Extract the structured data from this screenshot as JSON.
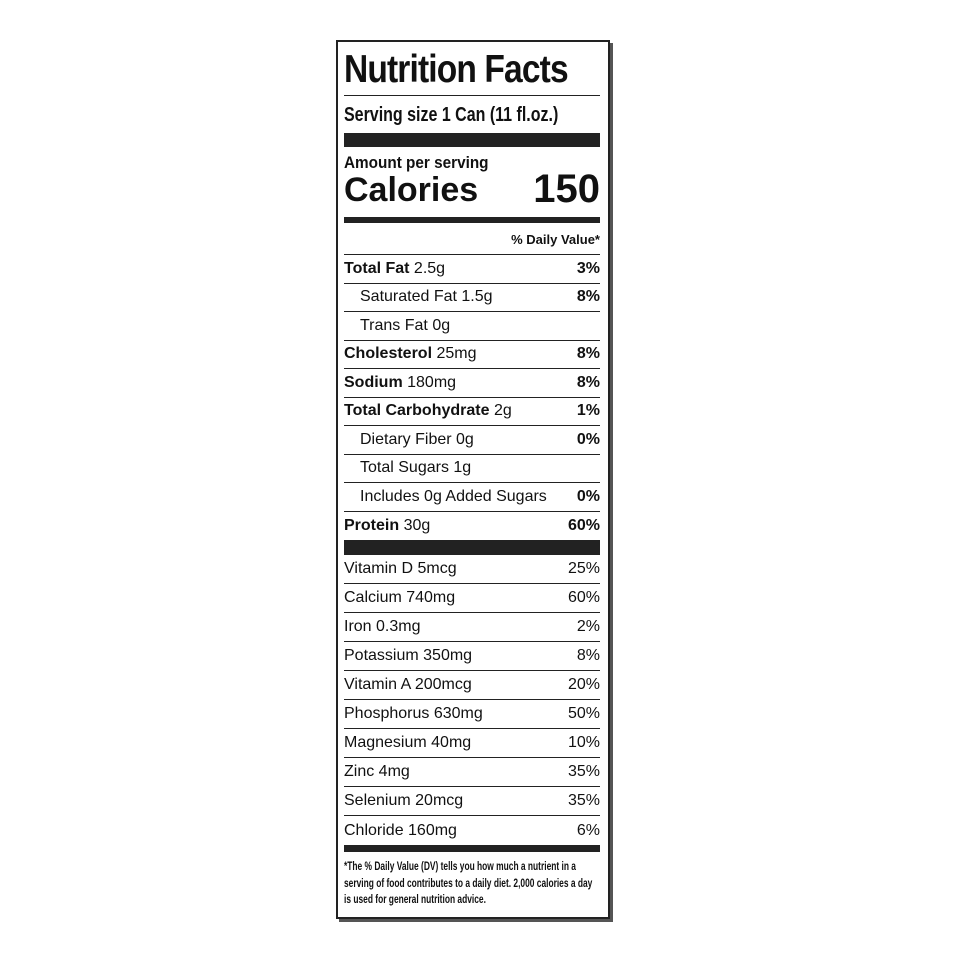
{
  "title": "Nutrition Facts",
  "serving_size": "Serving size  1 Can (11 fl.oz.)",
  "amount_per_serving": "Amount per serving",
  "calories_label": "Calories",
  "calories_value": "150",
  "daily_value_header": "% Daily Value*",
  "nutrients": [
    {
      "name": "Total Fat",
      "amount": " 2.5g",
      "dv": "3%",
      "bold": true,
      "indent": false
    },
    {
      "name": "Saturated Fat 1.5g",
      "amount": "",
      "dv": "8%",
      "bold": false,
      "indent": true
    },
    {
      "name": "Trans Fat 0g",
      "amount": "",
      "dv": "",
      "bold": false,
      "indent": true
    },
    {
      "name": "Cholesterol",
      "amount": " 25mg",
      "dv": "8%",
      "bold": true,
      "indent": false
    },
    {
      "name": "Sodium",
      "amount": " 180mg",
      "dv": "8%",
      "bold": true,
      "indent": false
    },
    {
      "name": "Total Carbohydrate",
      "amount": " 2g",
      "dv": "1%",
      "bold": true,
      "indent": false
    },
    {
      "name": "Dietary Fiber 0g",
      "amount": "",
      "dv": "0%",
      "bold": false,
      "indent": true
    },
    {
      "name": "Total Sugars 1g",
      "amount": "",
      "dv": "",
      "bold": false,
      "indent": true
    },
    {
      "name": "Includes 0g Added Sugars",
      "amount": "",
      "dv": "0%",
      "bold": false,
      "indent": true
    },
    {
      "name": "Protein",
      "amount": " 30g",
      "dv": "60%",
      "bold": true,
      "indent": false
    }
  ],
  "vitamins": [
    {
      "name": "Vitamin D 5mcg",
      "dv": "25%"
    },
    {
      "name": "Calcium 740mg",
      "dv": "60%"
    },
    {
      "name": "Iron 0.3mg",
      "dv": "2%"
    },
    {
      "name": "Potassium 350mg",
      "dv": "8%"
    },
    {
      "name": "Vitamin A 200mcg",
      "dv": "20%"
    },
    {
      "name": "Phosphorus 630mg",
      "dv": "50%"
    },
    {
      "name": "Magnesium 40mg",
      "dv": "10%"
    },
    {
      "name": "Zinc 4mg",
      "dv": "35%"
    },
    {
      "name": "Selenium 20mcg",
      "dv": "35%"
    },
    {
      "name": "Chloride 160mg",
      "dv": "6%"
    }
  ],
  "footnote": "*The % Daily Value (DV) tells you how much a nutrient in a serving of food contributes to a daily diet. 2,000 calories a day is used for general nutrition advice."
}
